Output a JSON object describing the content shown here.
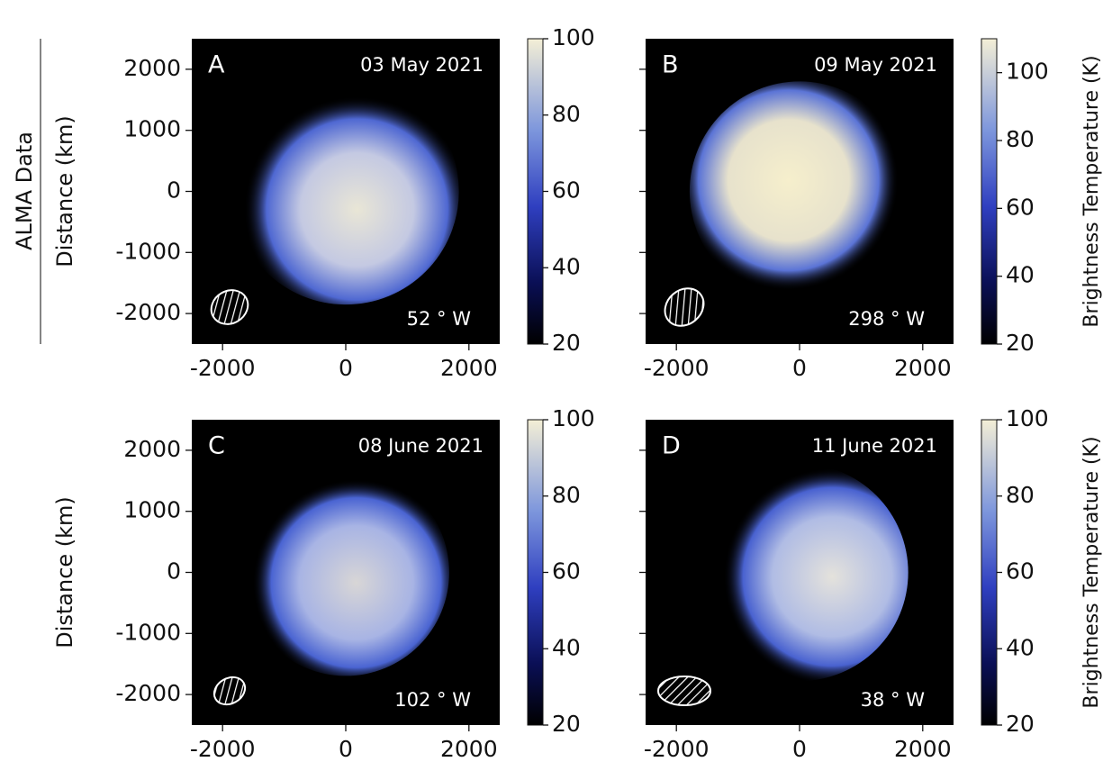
{
  "side_label": "ALMA Data",
  "chart_data": [
    {
      "type": "image",
      "panel": "A",
      "date": "03 May 2021",
      "longitude": "52 ° W",
      "ylabel": "Distance (km)",
      "xlim": [
        -2500,
        2500
      ],
      "ylim": [
        -2500,
        2500
      ],
      "xticks": [
        -2000,
        0,
        2000
      ],
      "yticks": [
        -2000,
        -1000,
        0,
        1000,
        2000
      ],
      "colorbar": {
        "lim": [
          20,
          100
        ],
        "ticks": [
          20,
          40,
          60,
          80,
          100
        ]
      }
    },
    {
      "type": "image",
      "panel": "B",
      "date": "09 May 2021",
      "longitude": "298 ° W",
      "show_ytick_labels": false,
      "xlim": [
        -2500,
        2500
      ],
      "ylim": [
        -2500,
        2500
      ],
      "xticks": [
        -2000,
        0,
        2000
      ],
      "yticks": [
        -2000,
        -1000,
        0,
        1000,
        2000
      ],
      "colorbar": {
        "lim": [
          20,
          110
        ],
        "ticks": [
          20,
          40,
          60,
          80,
          100
        ],
        "label": "Brightness Temperature (K)"
      }
    },
    {
      "type": "image",
      "panel": "C",
      "date": "08 June 2021",
      "longitude": "102 ° W",
      "ylabel": "Distance (km)",
      "xlim": [
        -2500,
        2500
      ],
      "ylim": [
        -2500,
        2500
      ],
      "xticks": [
        -2000,
        0,
        2000
      ],
      "yticks": [
        -2000,
        -1000,
        0,
        1000,
        2000
      ],
      "colorbar": {
        "lim": [
          20,
          100
        ],
        "ticks": [
          20,
          40,
          60,
          80,
          100
        ]
      }
    },
    {
      "type": "image",
      "panel": "D",
      "date": "11 June 2021",
      "longitude": "38 ° W",
      "show_ytick_labels": false,
      "xlim": [
        -2500,
        2500
      ],
      "ylim": [
        -2500,
        2500
      ],
      "xticks": [
        -2000,
        0,
        2000
      ],
      "yticks": [
        -2000,
        -1000,
        0,
        1000,
        2000
      ],
      "colorbar": {
        "lim": [
          20,
          100
        ],
        "ticks": [
          20,
          40,
          60,
          80,
          100
        ],
        "label": "Brightness Temperature (K)"
      }
    }
  ]
}
